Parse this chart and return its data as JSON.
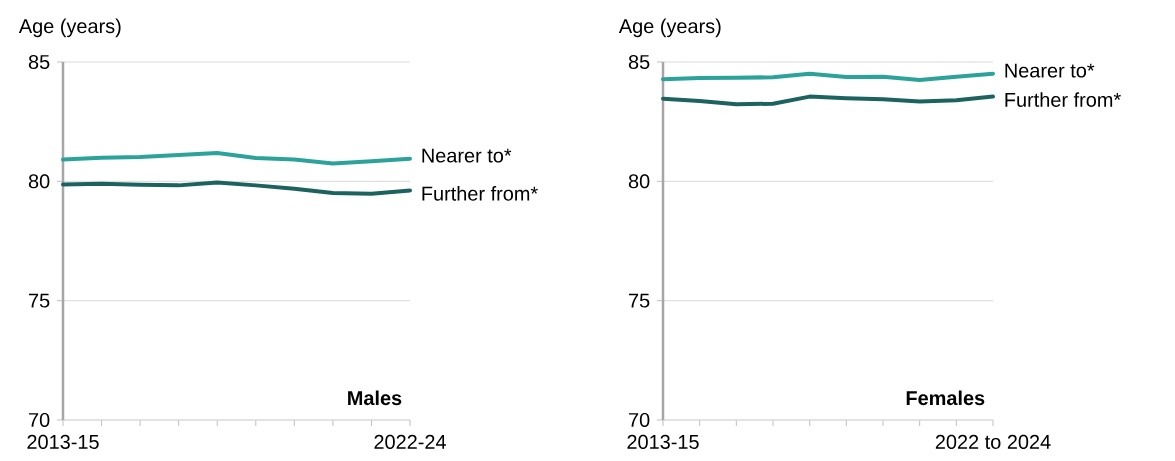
{
  "chart_data": [
    {
      "type": "line",
      "ylabel": "Age (years)",
      "categories": [
        "2013-15",
        null,
        null,
        null,
        null,
        null,
        null,
        null,
        null,
        "2022-24"
      ],
      "ylim": [
        70,
        85
      ],
      "yticks": [
        70,
        75,
        80,
        85
      ],
      "grid": "y",
      "annotations": [
        "Males"
      ],
      "series": [
        {
          "name": "Nearer to*",
          "color": "#2ba39a",
          "values": [
            80.91,
            80.99,
            81.02,
            81.1,
            81.19,
            80.98,
            80.91,
            80.75,
            80.84,
            80.95
          ]
        },
        {
          "name": "Further from*",
          "color": "#1c6360",
          "values": [
            79.87,
            79.9,
            79.86,
            79.83,
            79.95,
            79.83,
            79.69,
            79.51,
            79.48,
            79.62
          ]
        }
      ]
    },
    {
      "type": "line",
      "ylabel": "Age (years)",
      "categories": [
        "2013-15",
        null,
        null,
        null,
        null,
        null,
        null,
        null,
        null,
        "2022 to 2024"
      ],
      "ylim": [
        70,
        85
      ],
      "yticks": [
        70,
        75,
        80,
        85
      ],
      "grid": "y",
      "annotations": [
        "Females"
      ],
      "series": [
        {
          "name": "Nearer to*",
          "color": "#2ba39a",
          "values": [
            84.28,
            84.33,
            84.34,
            84.36,
            84.51,
            84.37,
            84.38,
            84.25,
            84.38,
            84.51
          ]
        },
        {
          "name": "Further from*",
          "color": "#1c6360",
          "values": [
            83.46,
            83.37,
            83.23,
            83.25,
            83.55,
            83.48,
            83.44,
            83.34,
            83.4,
            83.55
          ]
        }
      ]
    }
  ]
}
